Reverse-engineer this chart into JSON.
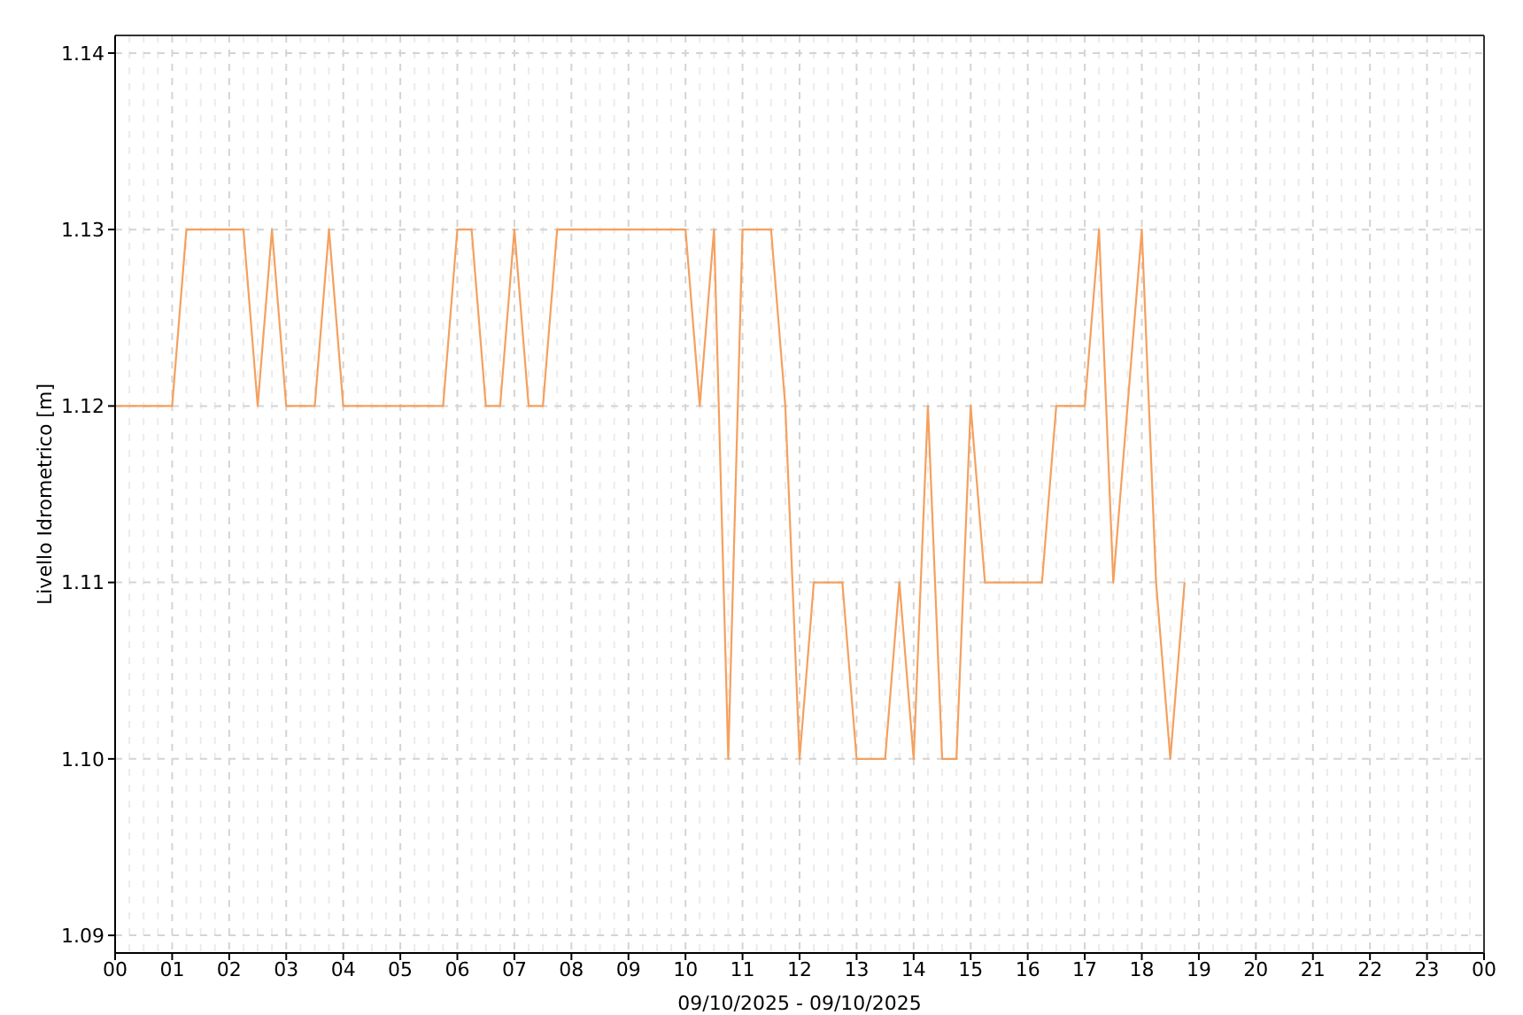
{
  "chart_data": {
    "type": "line",
    "xlabel": "09/10/2025 - 09/10/2025",
    "ylabel": "Livello Idrometrico [m]",
    "x": [
      0,
      0.25,
      0.5,
      0.75,
      1,
      1.25,
      1.5,
      1.75,
      2,
      2.25,
      2.5,
      2.75,
      3,
      3.25,
      3.5,
      3.75,
      4,
      4.25,
      4.5,
      4.75,
      5,
      5.25,
      5.5,
      5.75,
      6,
      6.25,
      6.5,
      6.75,
      7,
      7.25,
      7.5,
      7.75,
      8,
      8.25,
      8.5,
      8.75,
      9,
      9.25,
      9.5,
      9.75,
      10,
      10.25,
      10.5,
      10.75,
      11,
      11.25,
      11.5,
      11.75,
      12,
      12.25,
      12.5,
      12.75,
      13,
      13.25,
      13.5,
      13.75,
      14,
      14.25,
      14.5,
      14.75,
      15,
      15.25,
      15.5,
      15.75,
      16,
      16.25,
      16.5,
      16.75,
      17,
      17.25,
      17.5,
      17.75,
      18,
      18.25,
      18.5,
      18.75
    ],
    "series": [
      {
        "color": "#f5a05e",
        "values": [
          1.12,
          1.12,
          1.12,
          1.12,
          1.12,
          1.13,
          1.13,
          1.13,
          1.13,
          1.13,
          1.12,
          1.13,
          1.12,
          1.12,
          1.12,
          1.13,
          1.12,
          1.12,
          1.12,
          1.12,
          1.12,
          1.12,
          1.12,
          1.12,
          1.13,
          1.13,
          1.12,
          1.12,
          1.13,
          1.12,
          1.12,
          1.13,
          1.13,
          1.13,
          1.13,
          1.13,
          1.13,
          1.13,
          1.13,
          1.13,
          1.13,
          1.12,
          1.13,
          1.1,
          1.13,
          1.13,
          1.13,
          1.12,
          1.1,
          1.11,
          1.11,
          1.11,
          1.1,
          1.1,
          1.1,
          1.11,
          1.1,
          1.12,
          1.1,
          1.1,
          1.12,
          1.11,
          1.11,
          1.11,
          1.11,
          1.11,
          1.12,
          1.12,
          1.12,
          1.13,
          1.11,
          1.12,
          1.13,
          1.11,
          1.1,
          1.11
        ]
      }
    ],
    "xlim": [
      0,
      24
    ],
    "xticks": [
      {
        "value": 0,
        "label": "00"
      },
      {
        "value": 0.25,
        "label": null
      },
      {
        "value": 0.5,
        "label": null
      },
      {
        "value": 0.75,
        "label": null
      },
      {
        "value": 1,
        "label": "01"
      },
      {
        "value": 1.25,
        "label": null
      },
      {
        "value": 1.5,
        "label": null
      },
      {
        "value": 1.75,
        "label": null
      },
      {
        "value": 2,
        "label": "02"
      },
      {
        "value": 2.25,
        "label": null
      },
      {
        "value": 2.5,
        "label": null
      },
      {
        "value": 2.75,
        "label": null
      },
      {
        "value": 3,
        "label": "03"
      },
      {
        "value": 3.25,
        "label": null
      },
      {
        "value": 3.5,
        "label": null
      },
      {
        "value": 3.75,
        "label": null
      },
      {
        "value": 4,
        "label": "04"
      },
      {
        "value": 4.25,
        "label": null
      },
      {
        "value": 4.5,
        "label": null
      },
      {
        "value": 4.75,
        "label": null
      },
      {
        "value": 5,
        "label": "05"
      },
      {
        "value": 5.25,
        "label": null
      },
      {
        "value": 5.5,
        "label": null
      },
      {
        "value": 5.75,
        "label": null
      },
      {
        "value": 6,
        "label": "06"
      },
      {
        "value": 6.25,
        "label": null
      },
      {
        "value": 6.5,
        "label": null
      },
      {
        "value": 6.75,
        "label": null
      },
      {
        "value": 7,
        "label": "07"
      },
      {
        "value": 7.25,
        "label": null
      },
      {
        "value": 7.5,
        "label": null
      },
      {
        "value": 7.75,
        "label": null
      },
      {
        "value": 8,
        "label": "08"
      },
      {
        "value": 8.25,
        "label": null
      },
      {
        "value": 8.5,
        "label": null
      },
      {
        "value": 8.75,
        "label": null
      },
      {
        "value": 9,
        "label": "09"
      },
      {
        "value": 9.25,
        "label": null
      },
      {
        "value": 9.5,
        "label": null
      },
      {
        "value": 9.75,
        "label": null
      },
      {
        "value": 10,
        "label": "10"
      },
      {
        "value": 10.25,
        "label": null
      },
      {
        "value": 10.5,
        "label": null
      },
      {
        "value": 10.75,
        "label": null
      },
      {
        "value": 11,
        "label": "11"
      },
      {
        "value": 11.25,
        "label": null
      },
      {
        "value": 11.5,
        "label": null
      },
      {
        "value": 11.75,
        "label": null
      },
      {
        "value": 12,
        "label": "12"
      },
      {
        "value": 12.25,
        "label": null
      },
      {
        "value": 12.5,
        "label": null
      },
      {
        "value": 12.75,
        "label": null
      },
      {
        "value": 13,
        "label": "13"
      },
      {
        "value": 13.25,
        "label": null
      },
      {
        "value": 13.5,
        "label": null
      },
      {
        "value": 13.75,
        "label": null
      },
      {
        "value": 14,
        "label": "14"
      },
      {
        "value": 14.25,
        "label": null
      },
      {
        "value": 14.5,
        "label": null
      },
      {
        "value": 14.75,
        "label": null
      },
      {
        "value": 15,
        "label": "15"
      },
      {
        "value": 15.25,
        "label": null
      },
      {
        "value": 15.5,
        "label": null
      },
      {
        "value": 15.75,
        "label": null
      },
      {
        "value": 16,
        "label": "16"
      },
      {
        "value": 16.25,
        "label": null
      },
      {
        "value": 16.5,
        "label": null
      },
      {
        "value": 16.75,
        "label": null
      },
      {
        "value": 17,
        "label": "17"
      },
      {
        "value": 17.25,
        "label": null
      },
      {
        "value": 17.5,
        "label": null
      },
      {
        "value": 17.75,
        "label": null
      },
      {
        "value": 18,
        "label": "18"
      },
      {
        "value": 18.25,
        "label": null
      },
      {
        "value": 18.5,
        "label": null
      },
      {
        "value": 18.75,
        "label": null
      },
      {
        "value": 19,
        "label": "19"
      },
      {
        "value": 19.25,
        "label": null
      },
      {
        "value": 19.5,
        "label": null
      },
      {
        "value": 19.75,
        "label": null
      },
      {
        "value": 20,
        "label": "20"
      },
      {
        "value": 20.25,
        "label": null
      },
      {
        "value": 20.5,
        "label": null
      },
      {
        "value": 20.75,
        "label": null
      },
      {
        "value": 21,
        "label": "21"
      },
      {
        "value": 21.25,
        "label": null
      },
      {
        "value": 21.5,
        "label": null
      },
      {
        "value": 21.75,
        "label": null
      },
      {
        "value": 22,
        "label": "22"
      },
      {
        "value": 22.25,
        "label": null
      },
      {
        "value": 22.5,
        "label": null
      },
      {
        "value": 22.75,
        "label": null
      },
      {
        "value": 23,
        "label": "23"
      },
      {
        "value": 23.25,
        "label": null
      },
      {
        "value": 23.5,
        "label": null
      },
      {
        "value": 23.75,
        "label": null
      },
      {
        "value": 24,
        "label": "00"
      }
    ],
    "ylim": [
      1.089,
      1.141
    ],
    "yticks": [
      1.09,
      {
        "value": 1.1,
        "label": "1.10"
      },
      1.11,
      1.12,
      1.13,
      1.14
    ],
    "grid": true,
    "marker": "none",
    "line_style": "solid"
  }
}
